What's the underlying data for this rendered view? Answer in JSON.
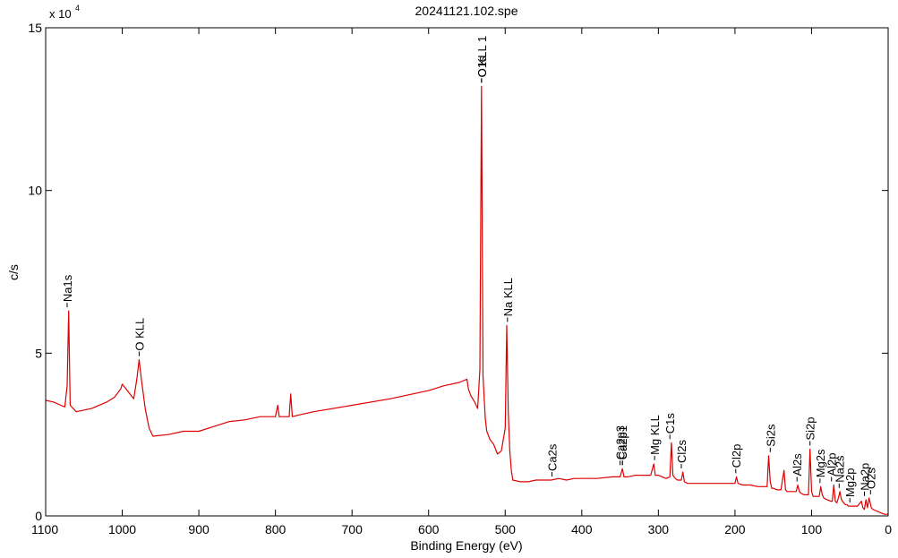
{
  "chart_data": {
    "type": "line",
    "title": "20241121.102.spe",
    "xlabel": "Binding Energy (eV)",
    "ylabel": "c/s",
    "y_multiplier_label": "x 10",
    "y_multiplier_exponent": "4",
    "xlim": [
      1100,
      0
    ],
    "ylim": [
      0,
      150000
    ],
    "x_reversed": true,
    "grid": false,
    "line_color": "#dd0000",
    "x_ticks": [
      {
        "value": 1100,
        "label": "1100"
      },
      {
        "value": 1000,
        "label": "1000"
      },
      {
        "value": 900,
        "label": "900"
      },
      {
        "value": 800,
        "label": "800"
      },
      {
        "value": 700,
        "label": "700"
      },
      {
        "value": 600,
        "label": "600"
      },
      {
        "value": 500,
        "label": "500"
      },
      {
        "value": 400,
        "label": "400"
      },
      {
        "value": 300,
        "label": "300"
      },
      {
        "value": 200,
        "label": "200"
      },
      {
        "value": 100,
        "label": "100"
      },
      {
        "value": 0,
        "label": "0"
      }
    ],
    "y_ticks": [
      {
        "value": 0,
        "label": "0"
      },
      {
        "value": 50000,
        "label": "5"
      },
      {
        "value": 100000,
        "label": "10"
      },
      {
        "value": 150000,
        "label": "15"
      }
    ],
    "series": [
      {
        "x": [
          1100,
          1090,
          1080,
          1075,
          1072,
          1070,
          1068,
          1060,
          1040,
          1020,
          1010,
          1002,
          1000,
          995,
          985,
          981,
          978,
          975,
          970,
          965,
          960,
          940,
          920,
          900,
          880,
          860,
          840,
          820,
          800,
          797,
          795,
          790,
          782,
          780,
          778,
          770,
          750,
          700,
          650,
          600,
          580,
          560,
          550,
          548,
          545,
          540,
          536,
          533,
          531,
          529,
          526,
          524,
          520,
          515,
          510,
          505,
          500,
          498,
          496,
          494,
          492,
          490,
          480,
          470,
          460,
          450,
          440,
          430,
          420,
          410,
          400,
          380,
          360,
          350,
          347,
          345,
          340,
          330,
          310,
          306,
          304,
          300,
          295,
          290,
          285,
          283,
          281,
          278,
          275,
          270,
          268,
          266,
          262,
          250,
          230,
          210,
          200,
          198,
          196,
          190,
          180,
          170,
          158,
          156,
          154,
          152,
          150,
          145,
          140,
          136,
          134,
          132,
          125,
          120,
          118,
          116,
          114,
          110,
          104,
          102,
          100,
          98,
          95,
          90,
          88,
          86,
          84,
          80,
          75,
          73,
          71,
          69,
          67,
          65,
          63,
          61,
          58,
          56,
          54,
          52,
          50,
          45,
          40,
          35,
          33,
          31,
          29,
          27,
          25,
          22,
          20,
          15,
          10,
          5,
          0
        ],
        "y": [
          35500,
          35000,
          34000,
          33500,
          40000,
          63000,
          34000,
          32000,
          33000,
          35000,
          36500,
          39000,
          40500,
          39000,
          36000,
          42000,
          48000,
          42000,
          33000,
          27000,
          24500,
          25000,
          26000,
          26000,
          27500,
          29000,
          29500,
          30500,
          30500,
          34000,
          30500,
          30500,
          30500,
          37500,
          30500,
          31000,
          32000,
          34000,
          36000,
          38500,
          40000,
          41000,
          42000,
          39000,
          37000,
          35000,
          33000,
          45000,
          132000,
          43000,
          30000,
          26000,
          23500,
          22000,
          19000,
          20000,
          27000,
          58500,
          32000,
          20000,
          14000,
          11000,
          10500,
          10500,
          11000,
          11000,
          11000,
          11500,
          11000,
          11500,
          11500,
          11500,
          12000,
          12000,
          14500,
          12000,
          12000,
          12500,
          12500,
          16000,
          12500,
          12500,
          12000,
          11500,
          12000,
          22500,
          12500,
          11500,
          11000,
          11000,
          13500,
          10500,
          10000,
          10000,
          10000,
          10000,
          10000,
          12000,
          10000,
          9500,
          9500,
          9000,
          9000,
          18500,
          10500,
          8500,
          8500,
          8000,
          8000,
          14000,
          8000,
          7500,
          7500,
          7500,
          9500,
          7500,
          7000,
          6500,
          6500,
          20500,
          7500,
          6000,
          6000,
          6000,
          9000,
          6500,
          5500,
          5000,
          4500,
          4500,
          9500,
          4500,
          4000,
          5500,
          7500,
          5000,
          4000,
          3500,
          3500,
          3000,
          3000,
          3000,
          3000,
          4500,
          2500,
          2000,
          5000,
          2500,
          5500,
          2500,
          2000,
          1500,
          1000,
          500,
          500
        ]
      }
    ],
    "annotations": [
      {
        "label": "Na1s",
        "x": 1072
      },
      {
        "label": "O KLL",
        "x": 978
      },
      {
        "label": "O1s",
        "x": 531
      },
      {
        "label": "C KLL 1",
        "x": 531
      },
      {
        "label": "Na KLL",
        "x": 497
      },
      {
        "label": "Ca2s",
        "x": 439
      },
      {
        "label": "Ca2p3",
        "x": 350
      },
      {
        "label": "Ca2p1",
        "x": 347
      },
      {
        "label": "Ca2p",
        "x": 347
      },
      {
        "label": "Mg KLL",
        "x": 305
      },
      {
        "label": "C1s",
        "x": 285
      },
      {
        "label": "Cl2s",
        "x": 270
      },
      {
        "label": "Cl2p",
        "x": 199
      },
      {
        "label": "Si2s",
        "x": 154
      },
      {
        "label": "Al2s",
        "x": 119
      },
      {
        "label": "Si2p",
        "x": 102
      },
      {
        "label": "Mg2s",
        "x": 89
      },
      {
        "label": "Al2p",
        "x": 74
      },
      {
        "label": "Na2s",
        "x": 64
      },
      {
        "label": "Mg2p",
        "x": 50
      },
      {
        "label": "Na2p",
        "x": 31
      },
      {
        "label": "O2s",
        "x": 23
      }
    ]
  }
}
